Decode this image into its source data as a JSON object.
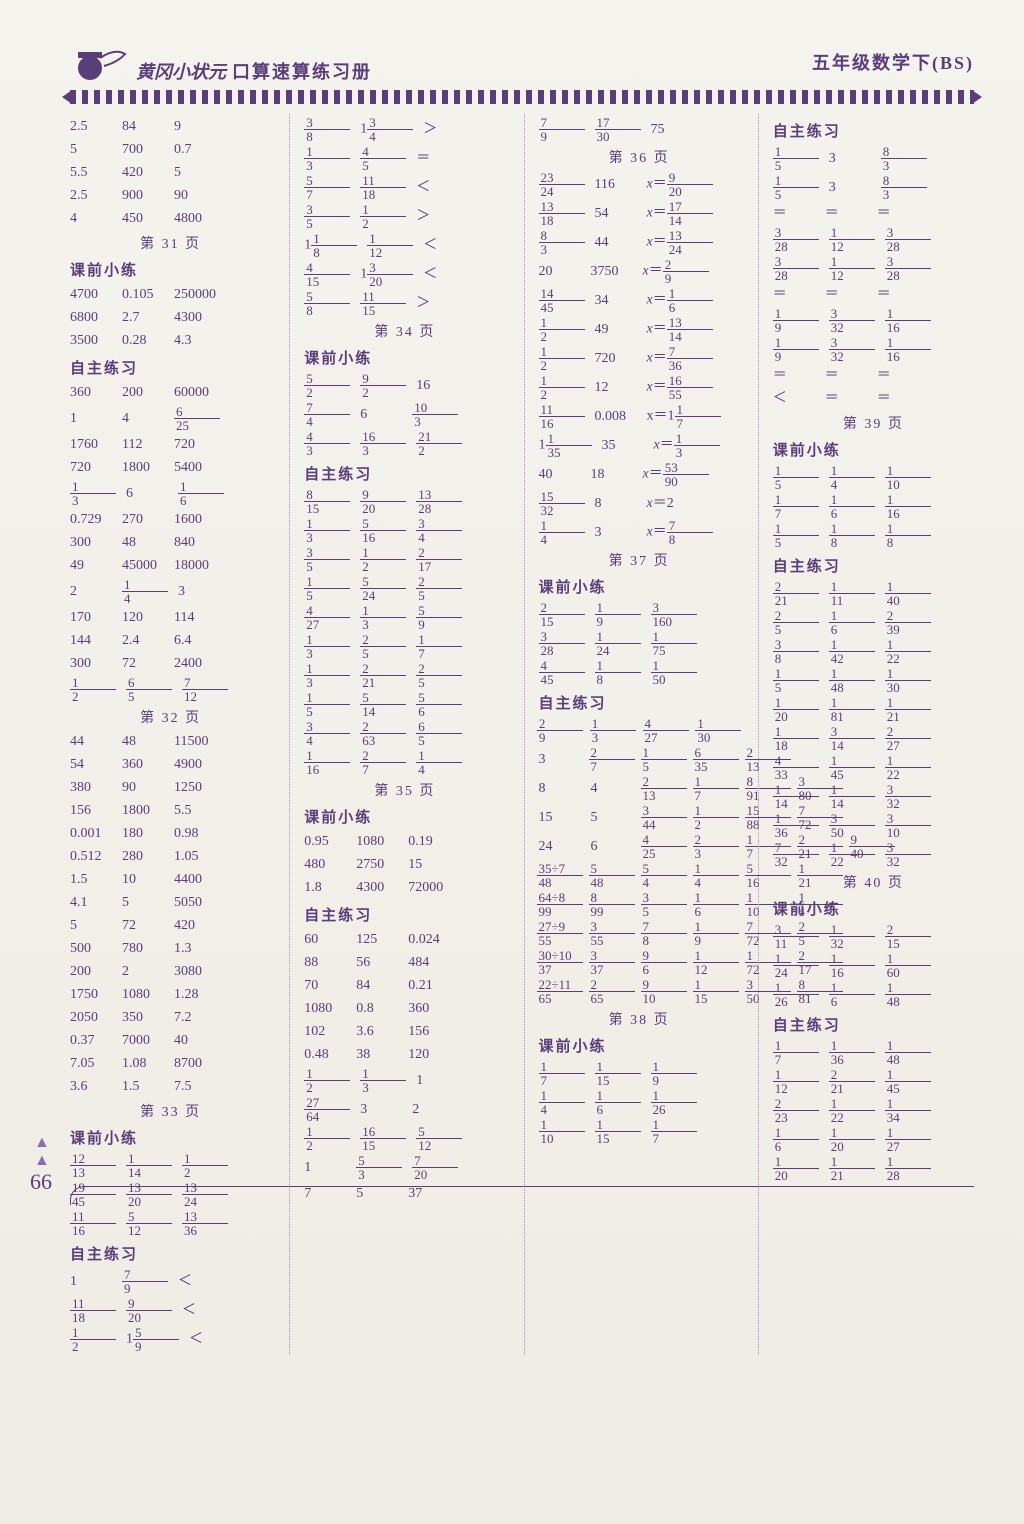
{
  "header": {
    "left_script": "黄冈小状元",
    "main": "口算速算练习册",
    "right": "五年级数学下(BS)"
  },
  "page_number": "66",
  "labels": {
    "keqian": "课前小练",
    "zizhu": "自主练习",
    "p31": "第 31 页",
    "p32": "第 32 页",
    "p33": "第 33 页",
    "p34": "第 34 页",
    "p35": "第 35 页",
    "p36": "第 36 页",
    "p37": "第 37 页",
    "p38": "第 38 页",
    "p39": "第 39 页",
    "p40": "第 40 页"
  },
  "c1": {
    "top": [
      [
        "2.5",
        "84",
        "9"
      ],
      [
        "5",
        "700",
        "0.7"
      ],
      [
        "5.5",
        "420",
        "5"
      ],
      [
        "2.5",
        "900",
        "90"
      ],
      [
        "4",
        "450",
        "4800"
      ]
    ],
    "kq31": [
      [
        "4700",
        "0.105",
        "250000"
      ],
      [
        "6800",
        "2.7",
        "4300"
      ],
      [
        "3500",
        "0.28",
        "4.3"
      ]
    ],
    "zz31": [
      [
        "360",
        "200",
        "60000"
      ],
      [
        "1",
        "4",
        "6/25"
      ],
      [
        "1760",
        "112",
        "720"
      ],
      [
        "720",
        "1800",
        "5400"
      ],
      [
        "1/3",
        "6",
        "1/6"
      ],
      [
        "0.729",
        "270",
        "1600"
      ],
      [
        "300",
        "48",
        "840"
      ],
      [
        "49",
        "45000",
        "18000"
      ],
      [
        "2",
        "1/4",
        "3"
      ],
      [
        "170",
        "120",
        "114"
      ],
      [
        "144",
        "2.4",
        "6.4"
      ],
      [
        "300",
        "72",
        "2400"
      ],
      [
        "1/2",
        "6/5",
        "7/12"
      ]
    ],
    "p32": [
      [
        "44",
        "48",
        "11500"
      ],
      [
        "54",
        "360",
        "4900"
      ],
      [
        "380",
        "90",
        "1250"
      ],
      [
        "156",
        "1800",
        "5.5"
      ],
      [
        "0.001",
        "180",
        "0.98"
      ],
      [
        "0.512",
        "280",
        "1.05"
      ],
      [
        "1.5",
        "10",
        "4400"
      ],
      [
        "4.1",
        "5",
        "5050"
      ],
      [
        "5",
        "72",
        "420"
      ],
      [
        "500",
        "780",
        "1.3"
      ],
      [
        "200",
        "2",
        "3080"
      ],
      [
        "1750",
        "1080",
        "1.28"
      ],
      [
        "2050",
        "350",
        "7.2"
      ],
      [
        "0.37",
        "7000",
        "40"
      ],
      [
        "7.05",
        "1.08",
        "8700"
      ],
      [
        "3.6",
        "1.5",
        "7.5"
      ]
    ],
    "kq33": [
      [
        "12/13",
        "1/14",
        "1/2"
      ],
      [
        "19/45",
        "13/20",
        "13/24"
      ],
      [
        "11/16",
        "5/12",
        "13/36"
      ]
    ],
    "zz33": [
      [
        "1",
        "7/9",
        "＜"
      ],
      [
        "11/18",
        "9/20",
        "＜"
      ],
      [
        "1/2",
        "1 5/9",
        "＜"
      ]
    ]
  },
  "c2": {
    "top": [
      [
        "3/8",
        "1 3/4",
        "＞"
      ],
      [
        "1/3",
        "4/5",
        "＝"
      ],
      [
        "5/7",
        "11/18",
        "＜"
      ],
      [
        "3/5",
        "1/2",
        "＞"
      ],
      [
        "1 1/8",
        "1/12",
        "＜"
      ],
      [
        "4/15",
        "1 3/20",
        "＜"
      ],
      [
        "5/8",
        "11/15",
        "＞"
      ]
    ],
    "kq34": [
      [
        "5/2",
        "9/2",
        "16"
      ],
      [
        "7/4",
        "6",
        "10/3"
      ],
      [
        "4/3",
        "16/3",
        "21/2"
      ]
    ],
    "zz34": [
      [
        "8/15",
        "9/20",
        "13/28"
      ],
      [
        "1/3",
        "5/16",
        "3/4"
      ],
      [
        "3/5",
        "1/2",
        "2/17"
      ],
      [
        "1/5",
        "5/24",
        "2/5"
      ],
      [
        "4/27",
        "1/3",
        "5/9"
      ],
      [
        "1/3",
        "2/5",
        "1/7"
      ],
      [
        "1/3",
        "2/21",
        "2/5"
      ],
      [
        "1/5",
        "5/14",
        "5/6"
      ],
      [
        "3/4",
        "2/63",
        "6/5"
      ],
      [
        "1/16",
        "2/7",
        "1/4"
      ]
    ],
    "kq35": [
      [
        "0.95",
        "1080",
        "0.19"
      ],
      [
        "480",
        "2750",
        "15"
      ],
      [
        "1.8",
        "4300",
        "72000"
      ]
    ],
    "zz35": [
      [
        "60",
        "125",
        "0.024"
      ],
      [
        "88",
        "56",
        "484"
      ],
      [
        "70",
        "84",
        "0.21"
      ],
      [
        "1080",
        "0.8",
        "360"
      ],
      [
        "102",
        "3.6",
        "156"
      ],
      [
        "0.48",
        "38",
        "120"
      ],
      [
        "1/2",
        "1/3",
        "1"
      ],
      [
        "27/64",
        "3",
        "2"
      ],
      [
        "1/2",
        "16/15",
        "5/12"
      ],
      [
        "1",
        "5/3",
        "7/20"
      ],
      [
        "7",
        "5",
        "37"
      ]
    ]
  },
  "c3": {
    "top": [
      [
        "7/9",
        "17/30",
        "75"
      ]
    ],
    "p36": [
      [
        "23/24",
        "116",
        "x＝9/20"
      ],
      [
        "13/18",
        "54",
        "x＝17/14"
      ],
      [
        "8/3",
        "44",
        "x＝13/24"
      ],
      [
        "20",
        "3750",
        "x＝2/9"
      ],
      [
        "14/45",
        "34",
        "x＝1/6"
      ],
      [
        "1/2",
        "49",
        "x＝13/14"
      ],
      [
        "1/2",
        "720",
        "x＝7/36"
      ],
      [
        "1/2",
        "12",
        "x＝16/55"
      ],
      [
        "11/16",
        "0.008",
        "x＝1 1/7"
      ],
      [
        "1 1/35",
        "35",
        "x＝1/3"
      ],
      [
        "40",
        "18",
        "x＝53/90"
      ],
      [
        "15/32",
        "8",
        "x＝2"
      ],
      [
        "1/4",
        "3",
        "x＝7/8"
      ]
    ],
    "kq37": [
      [
        "2/15",
        "1/9",
        "3/160"
      ],
      [
        "3/28",
        "1/24",
        "1/75"
      ],
      [
        "4/45",
        "1/8",
        "1/50"
      ]
    ],
    "zz37": [
      [
        "2/9",
        "1/3",
        "4/27",
        "1/30"
      ],
      [
        "3",
        "2/7",
        "1/5",
        "6/35",
        "2/13"
      ],
      [
        "8",
        "4",
        "2/13",
        "1/7",
        "8/91",
        "3/80"
      ],
      [
        "15",
        "5",
        "3/44",
        "1/2",
        "15/88",
        "7/72"
      ],
      [
        "24",
        "6",
        "4/25",
        "2/3",
        "1/7",
        "2/21",
        "9/40"
      ],
      [
        "35÷7/48",
        "5/48",
        "5/4",
        "1/4",
        "5/16",
        "1/21"
      ],
      [
        "64÷8/99",
        "8/99",
        "3/5",
        "1/6",
        "1/10",
        "1/4"
      ],
      [
        "27÷9/55",
        "3/55",
        "7/8",
        "1/9",
        "7/72",
        "2/5"
      ],
      [
        "30÷10/37",
        "3/37",
        "9/6",
        "1/12",
        "1/72",
        "2/17"
      ],
      [
        "22÷11/65",
        "2/65",
        "9/10",
        "1/15",
        "3/50",
        "8/81"
      ]
    ],
    "kq38": [
      [
        "1/7",
        "1/15",
        "1/9"
      ],
      [
        "1/4",
        "1/6",
        "1/26"
      ],
      [
        "1/10",
        "1/15",
        "1/7"
      ]
    ]
  },
  "c4": {
    "zz_top": [
      [
        "1/5",
        "3",
        "8/3"
      ],
      [
        "1/5",
        "3",
        "8/3"
      ],
      [
        "＝",
        "＝",
        "＝"
      ],
      [
        "3/28",
        "1/12",
        "3/28"
      ],
      [
        "3/28",
        "1/12",
        "3/28"
      ],
      [
        "＝",
        "＝",
        "＝"
      ],
      [
        "1/9",
        "3/32",
        "1/16"
      ],
      [
        "1/9",
        "3/32",
        "1/16"
      ],
      [
        "＝",
        "＝",
        "＝"
      ],
      [
        "＜",
        "＝",
        "＝"
      ]
    ],
    "kq39": [
      [
        "1/5",
        "1/4",
        "1/10"
      ],
      [
        "1/7",
        "1/6",
        "1/16"
      ],
      [
        "1/5",
        "1/8",
        "1/8"
      ]
    ],
    "zz39": [
      [
        "2/21",
        "1/11",
        "1/40"
      ],
      [
        "2/5",
        "1/6",
        "2/39"
      ],
      [
        "3/8",
        "1/42",
        "1/22"
      ],
      [
        "1/5",
        "1/48",
        "1/30"
      ],
      [
        "1/20",
        "1/81",
        "1/21"
      ],
      [
        "1/18",
        "3/14",
        "2/27"
      ],
      [
        "4/33",
        "1/45",
        "1/22"
      ],
      [
        "1/14",
        "1/14",
        "3/32"
      ],
      [
        "1/36",
        "3/50",
        "3/10"
      ],
      [
        "7/32",
        "1/22",
        "3/32"
      ]
    ],
    "kq40": [
      [
        "3/11",
        "1/32",
        "2/15"
      ],
      [
        "1/24",
        "1/16",
        "1/60"
      ],
      [
        "1/26",
        "1/6",
        "1/48"
      ]
    ],
    "zz40": [
      [
        "1/7",
        "1/36",
        "1/48"
      ],
      [
        "1/12",
        "2/21",
        "1/45"
      ],
      [
        "2/23",
        "1/22",
        "1/34"
      ],
      [
        "1/6",
        "1/20",
        "1/27"
      ],
      [
        "1/20",
        "1/21",
        "1/28"
      ]
    ]
  },
  "style": {
    "text_color": "#5a3e7a",
    "bg": "#f2f0ea",
    "sep": "#a88fc2"
  }
}
